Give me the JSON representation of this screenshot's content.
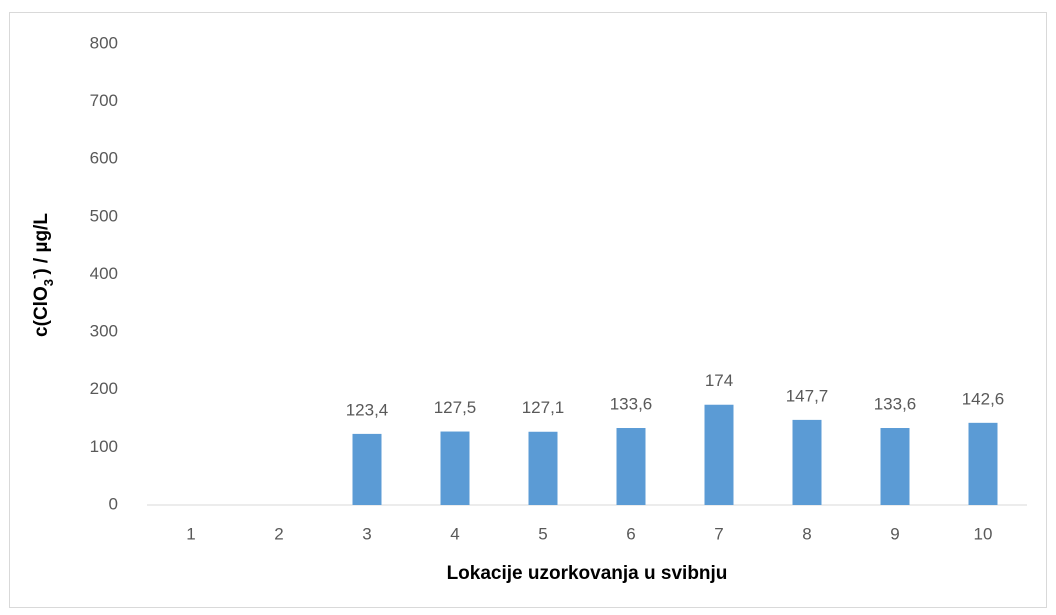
{
  "chart_data": {
    "type": "bar",
    "xlabel": "Lokacije uzorkovanja u svibnju",
    "ylabel": [
      {
        "text": "c(ClO"
      },
      {
        "text": "3",
        "shift": "sub"
      },
      {
        "text": "-",
        "shift": "super"
      },
      {
        "text": ") / µg/L"
      }
    ],
    "categories": [
      "1",
      "2",
      "3",
      "4",
      "5",
      "6",
      "7",
      "8",
      "9",
      "10"
    ],
    "values": [
      null,
      null,
      123.4,
      127.5,
      127.1,
      133.6,
      174,
      147.7,
      133.6,
      142.6
    ],
    "value_labels": [
      null,
      null,
      "123,4",
      "127,5",
      "127,1",
      "133,6",
      "174",
      "147,7",
      "133,6",
      "142,6"
    ],
    "color": "#5b9bd5",
    "ylim": [
      0,
      800
    ],
    "yticks": [
      0,
      100,
      200,
      300,
      400,
      500,
      600,
      700,
      800
    ],
    "grid": false
  }
}
